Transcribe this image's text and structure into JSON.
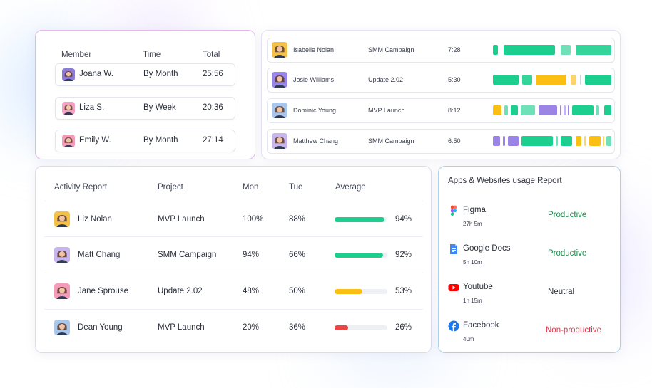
{
  "members_card": {
    "headers": {
      "member": "Member",
      "time": "Time",
      "total": "Total"
    },
    "rows": [
      {
        "name": "Joana W.",
        "period": "By Month",
        "total": "25:56",
        "avatar": "woman-avatar",
        "bg": "#8e7ad9"
      },
      {
        "name": "Liza S.",
        "period": "By Week",
        "total": "20:36",
        "avatar": "woman-avatar",
        "bg": "#f3a2c4"
      },
      {
        "name": "Emily W.",
        "period": "By Month",
        "total": "27:14",
        "avatar": "woman-avatar",
        "bg": "#f39bb8"
      }
    ]
  },
  "timeline_card": {
    "rows": [
      {
        "name": "Isabelle Nolan",
        "project": "SMM Campaign",
        "time": "7:28",
        "bg": "#f4c148"
      },
      {
        "name": "Josie Williams",
        "project": "Update 2.02",
        "time": "5:30",
        "bg": "#9a86e8"
      },
      {
        "name": "Dominic Young",
        "project": "MVP Launch",
        "time": "8:12",
        "bg": "#a9c6ec"
      },
      {
        "name": "Matthew Chang",
        "project": "SMM Campaign",
        "time": "6:50",
        "bg": "#c9b5ee"
      }
    ],
    "colors": {
      "green": "#1ccf8e",
      "light_green": "#6fe0b8",
      "yellow": "#fbbf14",
      "light_yellow": "#fbd56a",
      "purple": "#9b84e6",
      "light_purple": "#c2b4f1"
    }
  },
  "activity_card": {
    "headers": {
      "report": "Activity Report",
      "project": "Project",
      "mon": "Mon",
      "tue": "Tue",
      "average": "Average"
    },
    "rows": [
      {
        "name": "Liz Nolan",
        "project": "MVP Launch",
        "mon": "100%",
        "tue": "88%",
        "average": "94%",
        "avg_value": 94,
        "bar_color": "#1ccf8e",
        "bg": "#f4c148"
      },
      {
        "name": "Matt Chang",
        "project": "SMM Campaign",
        "mon": "94%",
        "tue": "66%",
        "average": "92%",
        "avg_value": 92,
        "bar_color": "#1ccf8e",
        "bg": "#c9b5ee"
      },
      {
        "name": "Jane Sprouse",
        "project": "Update 2.02",
        "mon": "48%",
        "tue": "50%",
        "average": "53%",
        "avg_value": 53,
        "bar_color": "#fbbf14",
        "bg": "#f39bb8"
      },
      {
        "name": "Dean Young",
        "project": "MVP Launch",
        "mon": "20%",
        "tue": "36%",
        "average": "26%",
        "avg_value": 26,
        "bar_color": "#ef4444",
        "bg": "#a9c6ec"
      }
    ]
  },
  "apps_card": {
    "title": "Apps & Websites usage Report",
    "apps": [
      {
        "name": "Figma",
        "duration": "27h 5m",
        "status": "Productive",
        "status_color": "#1a8f4a",
        "icon": "figma-icon"
      },
      {
        "name": "Google Docs",
        "duration": "5h 10m",
        "status": "Productive",
        "status_color": "#1a8f4a",
        "icon": "google-docs-icon"
      },
      {
        "name": "Youtube",
        "duration": "1h 15m",
        "status": "Neutral",
        "status_color": "#2b2f3a",
        "icon": "youtube-icon"
      },
      {
        "name": "Facebook",
        "duration": "40m",
        "status": "Non-productive",
        "status_color": "#e0364a",
        "icon": "facebook-icon"
      }
    ]
  }
}
